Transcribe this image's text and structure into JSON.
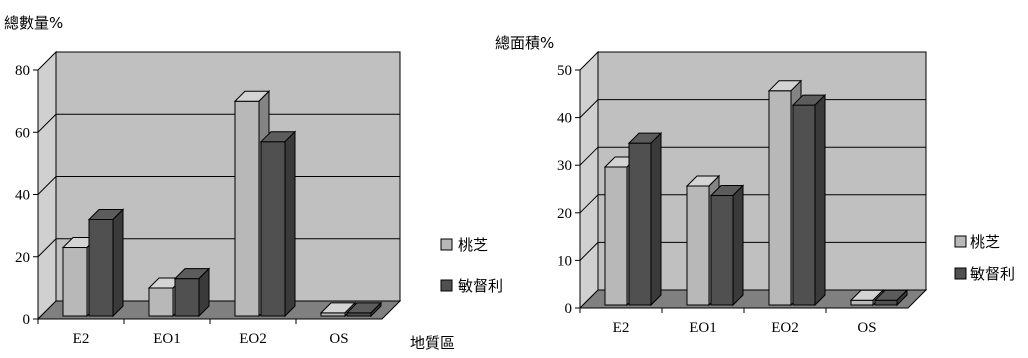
{
  "charts": {
    "left": {
      "title": "總數量%",
      "xlabel": "地質區",
      "legend": [
        "桃芝",
        "敏督利"
      ]
    },
    "right": {
      "title": "總面積%",
      "xlabel": "",
      "legend": [
        "桃芝",
        "敏督利"
      ]
    }
  },
  "colors": {
    "series1": "#b8b8b8",
    "series2": "#505050",
    "wall": "#c0c0c0",
    "floor": "#808080"
  },
  "chart_data": [
    {
      "type": "bar",
      "title": "總數量%",
      "xlabel": "地質區",
      "ylabel": "",
      "categories": [
        "E2",
        "EO1",
        "EO2",
        "OS"
      ],
      "yticks": [
        "0",
        "20",
        "40",
        "60",
        "80"
      ],
      "ylim": [
        0,
        80
      ],
      "grid": true,
      "legend": "right",
      "series": [
        {
          "name": "桃芝",
          "values": [
            22,
            9,
            69,
            1
          ]
        },
        {
          "name": "敏督利",
          "values": [
            31,
            12,
            56,
            1
          ]
        }
      ]
    },
    {
      "type": "bar",
      "title": "總面積%",
      "xlabel": "",
      "ylabel": "",
      "categories": [
        "E2",
        "EO1",
        "EO2",
        "OS"
      ],
      "yticks": [
        "0",
        "10",
        "20",
        "30",
        "40",
        "50"
      ],
      "ylim": [
        0,
        50
      ],
      "grid": true,
      "legend": "right",
      "series": [
        {
          "name": "桃芝",
          "values": [
            29,
            25,
            45,
            1
          ]
        },
        {
          "name": "敏督利",
          "values": [
            34,
            23,
            42,
            1
          ]
        }
      ]
    }
  ]
}
